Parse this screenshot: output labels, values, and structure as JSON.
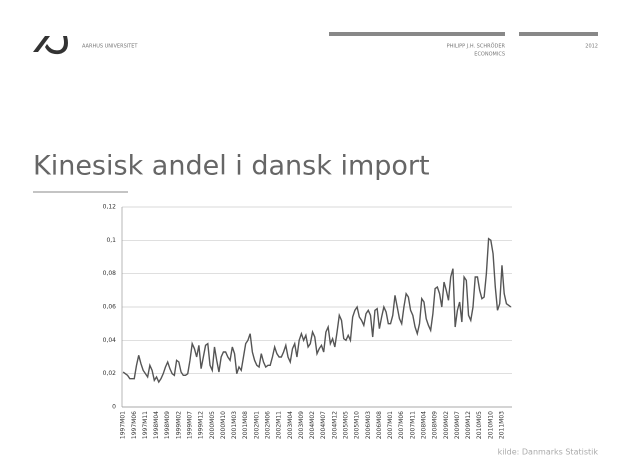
{
  "header": {
    "university": "AARHUS UNIVERSITET",
    "author": "PHILIPP J.H. SCHRÖDER",
    "department": "ECONOMICS",
    "year": "2012"
  },
  "chart_data": {
    "type": "line",
    "title": "Kinesisk andel i dansk import",
    "source": "kilde: Danmarks Statistik",
    "categories": [
      "1997M01",
      null,
      null,
      null,
      null,
      "1997M06",
      null,
      null,
      null,
      null,
      "1997M11",
      null,
      null,
      null,
      null,
      "1998M04",
      null,
      null,
      null,
      null,
      "1998M09",
      null,
      null,
      null,
      null,
      "1999M02",
      null,
      null,
      null,
      null,
      "1999M07",
      null,
      null,
      null,
      null,
      "1999M12",
      null,
      null,
      null,
      null,
      "2000M05",
      null,
      null,
      null,
      null,
      "2000M10",
      null,
      null,
      null,
      null,
      "2001M03",
      null,
      null,
      null,
      null,
      "2001M08",
      null,
      null,
      null,
      null,
      "2002M01",
      null,
      null,
      null,
      null,
      "2002M06",
      null,
      null,
      null,
      null,
      "2002M11",
      null,
      null,
      null,
      null,
      "2003M04",
      null,
      null,
      null,
      null,
      "2003M09",
      null,
      null,
      null,
      null,
      "2004M02",
      null,
      null,
      null,
      null,
      "2004M07",
      null,
      null,
      null,
      null,
      "2004M12",
      null,
      null,
      null,
      null,
      "2005M05",
      null,
      null,
      null,
      null,
      "2005M10",
      null,
      null,
      null,
      null,
      "2006M03",
      null,
      null,
      null,
      null,
      "2006M08",
      null,
      null,
      null,
      null,
      "2007M01",
      null,
      null,
      null,
      null,
      "2007M06",
      null,
      null,
      null,
      null,
      "2007M11",
      null,
      null,
      null,
      null,
      "2008M04",
      null,
      null,
      null,
      null,
      "2008M09",
      null,
      null,
      null,
      null,
      "2009M02",
      null,
      null,
      null,
      null,
      "2009M07",
      null,
      null,
      null,
      null,
      "2009M12",
      null,
      null,
      null,
      null,
      "2010M05",
      null,
      null,
      null,
      null,
      "2010M10",
      null,
      null,
      null,
      null,
      "2011M03",
      null,
      null,
      null,
      null
    ],
    "values": [
      0.021,
      0.02,
      0.019,
      0.017,
      0.017,
      0.017,
      0.025,
      0.031,
      0.026,
      0.022,
      0.02,
      0.018,
      0.025,
      0.022,
      0.016,
      0.018,
      0.015,
      0.017,
      0.02,
      0.024,
      0.027,
      0.023,
      0.02,
      0.019,
      0.028,
      0.027,
      0.021,
      0.019,
      0.019,
      0.02,
      0.028,
      0.038,
      0.035,
      0.03,
      0.037,
      0.023,
      0.03,
      0.037,
      0.038,
      0.025,
      0.022,
      0.036,
      0.028,
      0.021,
      0.03,
      0.033,
      0.033,
      0.03,
      0.028,
      0.036,
      0.032,
      0.02,
      0.024,
      0.022,
      0.03,
      0.038,
      0.04,
      0.044,
      0.033,
      0.028,
      0.025,
      0.024,
      0.032,
      0.027,
      0.024,
      0.025,
      0.025,
      0.03,
      0.036,
      0.032,
      0.03,
      0.03,
      0.033,
      0.037,
      0.03,
      0.027,
      0.035,
      0.038,
      0.03,
      0.04,
      0.044,
      0.04,
      0.043,
      0.036,
      0.038,
      0.045,
      0.042,
      0.032,
      0.035,
      0.037,
      0.033,
      0.045,
      0.048,
      0.038,
      0.041,
      0.036,
      0.045,
      0.055,
      0.052,
      0.041,
      0.04,
      0.043,
      0.04,
      0.054,
      0.058,
      0.06,
      0.054,
      0.052,
      0.049,
      0.056,
      0.058,
      0.055,
      0.042,
      0.058,
      0.059,
      0.047,
      0.054,
      0.06,
      0.057,
      0.05,
      0.05,
      0.055,
      0.067,
      0.06,
      0.053,
      0.05,
      0.06,
      0.068,
      0.066,
      0.058,
      0.055,
      0.048,
      0.044,
      0.05,
      0.065,
      0.063,
      0.053,
      0.049,
      0.046,
      0.056,
      0.071,
      0.072,
      0.068,
      0.06,
      0.075,
      0.07,
      0.064,
      0.078,
      0.083,
      0.048,
      0.058,
      0.063,
      0.051,
      0.078,
      0.076,
      0.055,
      0.052,
      0.06,
      0.078,
      0.078,
      0.07,
      0.065,
      0.066,
      0.08,
      0.101,
      0.1,
      0.092,
      0.072,
      0.058,
      0.062,
      0.085,
      0.068,
      0.062,
      0.061,
      0.06
    ],
    "color": "#555555",
    "ylim": [
      0,
      0.12
    ],
    "yticks": [
      0,
      {
        "value": 0.02,
        "label": "0,02"
      },
      {
        "value": 0.04,
        "label": "0,04"
      },
      {
        "value": 0.06,
        "label": "0,06"
      },
      {
        "value": 0.08,
        "label": "0,08"
      },
      {
        "value": 0.1,
        "label": "0,1"
      },
      {
        "value": 0.12,
        "label": "0,12"
      }
    ],
    "grid": true
  }
}
